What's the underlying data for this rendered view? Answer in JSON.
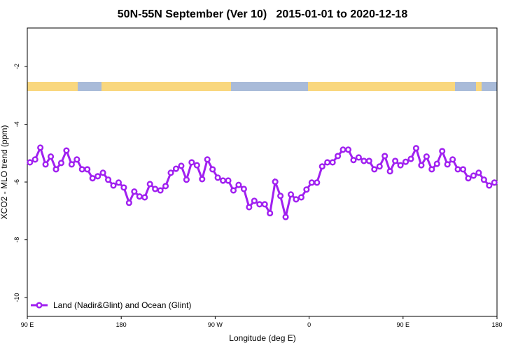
{
  "chart_data": {
    "type": "line",
    "title": "50N-55N September (Ver 10)   2015-01-01 to 2020-12-18",
    "x_label": "Longitude (deg E)",
    "y_label": "XCO2 - MLO trend (ppm)",
    "x": [
      92.5,
      97.5,
      102.5,
      107.5,
      112.5,
      117.5,
      122.5,
      127.5,
      132.5,
      137.5,
      142.5,
      147.5,
      152.5,
      157.5,
      162.5,
      167.5,
      172.5,
      177.5,
      182.5,
      187.5,
      192.5,
      197.5,
      202.5,
      207.5,
      212.5,
      217.5,
      222.5,
      227.5,
      232.5,
      237.5,
      242.5,
      247.5,
      252.5,
      257.5,
      262.5,
      267.5,
      272.5,
      277.5,
      282.5,
      287.5,
      292.5,
      297.5,
      302.5,
      307.5,
      312.5,
      317.5,
      322.5,
      327.5,
      332.5,
      337.5,
      342.5,
      347.5,
      352.5,
      357.5,
      362.5,
      367.5,
      372.5,
      377.5,
      382.5,
      387.5,
      392.5,
      397.5,
      402.5,
      407.5,
      412.5,
      417.5,
      422.5,
      427.5,
      432.5,
      437.5,
      442.5,
      447.5,
      452.5,
      457.5,
      462.5,
      467.5,
      472.5,
      477.5,
      482.5,
      487.5,
      492.5,
      497.5,
      502.5,
      507.5,
      512.5,
      517.5,
      522.5,
      527.5,
      532.5,
      537.5
    ],
    "series": [
      {
        "name": "Land (Nadir&Glint) and Ocean (Glint)",
        "color": "#a020f0",
        "values": [
          -5.32,
          -5.22,
          -4.81,
          -5.39,
          -5.12,
          -5.56,
          -5.34,
          -4.91,
          -5.39,
          -5.22,
          -5.56,
          -5.56,
          -5.87,
          -5.8,
          -5.68,
          -5.92,
          -6.12,
          -6.02,
          -6.19,
          -6.72,
          -6.33,
          -6.5,
          -6.53,
          -6.07,
          -6.24,
          -6.29,
          -6.14,
          -5.68,
          -5.54,
          -5.44,
          -5.92,
          -5.32,
          -5.42,
          -5.9,
          -5.22,
          -5.56,
          -5.85,
          -5.95,
          -5.95,
          -6.29,
          -6.1,
          -6.24,
          -6.87,
          -6.65,
          -6.77,
          -6.77,
          -7.08,
          -5.99,
          -6.48,
          -7.21,
          -6.43,
          -6.6,
          -6.53,
          -6.26,
          -6.02,
          -6.02,
          -5.46,
          -5.32,
          -5.32,
          -5.1,
          -4.88,
          -4.88,
          -5.24,
          -5.15,
          -5.27,
          -5.27,
          -5.56,
          -5.46,
          -5.1,
          -5.63,
          -5.27,
          -5.42,
          -5.3,
          -5.2,
          -4.83,
          -5.42,
          -5.12,
          -5.56,
          -5.37,
          -4.93,
          -5.39,
          -5.22,
          -5.56,
          -5.56,
          -5.87,
          -5.78,
          -5.68,
          -5.92,
          -6.12,
          -6.02
        ]
      }
    ],
    "xlim": [
      90,
      540
    ],
    "xticks": [
      {
        "value": 90,
        "label": "90 E"
      },
      {
        "value": 180,
        "label": "180"
      },
      {
        "value": 270,
        "label": "90 W"
      },
      {
        "value": 360,
        "label": "0"
      },
      {
        "value": 450,
        "label": "90 E"
      },
      {
        "value": 540,
        "label": "180"
      }
    ],
    "ylim": [
      -10.65,
      -0.67
    ],
    "yticks": [
      -2,
      -4,
      -6,
      -8,
      -10
    ],
    "legend": "bottom-left"
  }
}
